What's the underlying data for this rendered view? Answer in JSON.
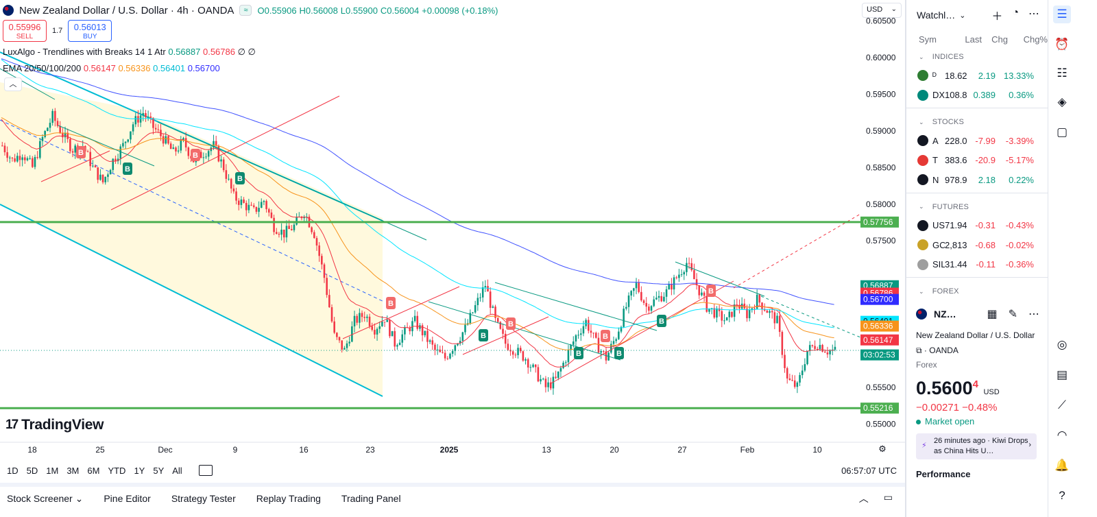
{
  "header": {
    "title": "New Zealand Dollar / U.S. Dollar · 4h · OANDA",
    "status_pill": "≈",
    "ohlc": {
      "o": "O0.55906",
      "h": "H0.56008",
      "l": "L0.55900",
      "c": "C0.56004",
      "chg": "+0.00098 (+0.18%)"
    },
    "sell_price": "0.55996",
    "sell_label": "SELL",
    "spread": "1.7",
    "buy_price": "0.56013",
    "buy_label": "BUY",
    "currency": "USD"
  },
  "indicators": {
    "luxalgo": {
      "label": "LuxAlgo - Trendlines with Breaks 14 1 Atr",
      "v1": "0.56887",
      "v2": "0.56786",
      "v3": "∅ ∅"
    },
    "ema": {
      "label": "EMA 20/50/100/200",
      "v20": "0.56147",
      "v50": "0.56336",
      "v100": "0.56401",
      "v200": "0.56700"
    }
  },
  "colors": {
    "up": "#089981",
    "down": "#f23645",
    "ema20": "#f23645",
    "ema50": "#f7931a",
    "ema100": "#00e5ff",
    "ema200": "#3f51ff",
    "level": "#4caf50",
    "channel": "#00bcd4"
  },
  "price_axis": {
    "ticks": [
      "0.60500",
      "0.60000",
      "0.59500",
      "0.59000",
      "0.58500",
      "0.58000",
      "0.57500",
      "0.55500",
      "0.55000"
    ],
    "tags": [
      {
        "text": "0.57756",
        "color": "#4caf50"
      },
      {
        "text": "0.56887",
        "color": "#089981"
      },
      {
        "text": "0.56786",
        "color": "#f23645"
      },
      {
        "text": "0.56700",
        "color": "#2f2bff"
      },
      {
        "text": "0.56401",
        "color": "#00e5ff"
      },
      {
        "text": "0.56336",
        "color": "#f7931a"
      },
      {
        "text": "0.56147",
        "color": "#f23645"
      },
      {
        "text": "03:02:53",
        "color": "#089981"
      },
      {
        "text": "0.55216",
        "color": "#4caf50"
      }
    ]
  },
  "time_axis": [
    "18",
    "25",
    "Dec",
    "9",
    "16",
    "23",
    "2025",
    "13",
    "20",
    "27",
    "Feb",
    "10"
  ],
  "range_buttons": [
    "1D",
    "5D",
    "1M",
    "3M",
    "6M",
    "YTD",
    "1Y",
    "5Y",
    "All"
  ],
  "clock": "06:57:07 UTC",
  "brand": "TradingView",
  "bottom_tabs": [
    "Stock Screener",
    "Pine Editor",
    "Strategy Tester",
    "Replay Trading",
    "Trading Panel"
  ],
  "watchlist": {
    "title": "Watchl…",
    "columns": [
      "Sym",
      "Last",
      "Chg",
      "Chg%"
    ],
    "sections": [
      {
        "name": "INDICES",
        "rows": [
          {
            "sym": "ᴰ",
            "icon_color": "#2e7d32",
            "last": "18.62",
            "chg": "2.19",
            "chgp": "13.33%",
            "dir": "pos"
          },
          {
            "sym": "DX",
            "icon_color": "#00897b",
            "last": "108.8",
            "chg": "0.389",
            "chgp": "0.36%",
            "dir": "pos"
          }
        ]
      },
      {
        "name": "STOCKS",
        "rows": [
          {
            "sym": "A",
            "icon_color": "#131722",
            "last": "228.0",
            "chg": "-7.99",
            "chgp": "-3.39%",
            "dir": "neg"
          },
          {
            "sym": "T",
            "icon_color": "#e53935",
            "last": "383.6",
            "chg": "-20.9",
            "chgp": "-5.17%",
            "dir": "neg"
          },
          {
            "sym": "N",
            "icon_color": "#131722",
            "last": "978.9",
            "chg": "2.18",
            "chgp": "0.22%",
            "dir": "pos"
          }
        ]
      },
      {
        "name": "FUTURES",
        "rows": [
          {
            "sym": "US",
            "icon_color": "#131722",
            "last": "71.94",
            "chg": "-0.31",
            "chgp": "-0.43%",
            "dir": "neg"
          },
          {
            "sym": "GC",
            "icon_color": "#c9a227",
            "last": "2,813",
            "chg": "-0.68",
            "chgp": "-0.02%",
            "dir": "neg"
          },
          {
            "sym": "SIL",
            "icon_color": "#9e9e9e",
            "last": "31.44",
            "chg": "-0.11",
            "chgp": "-0.36%",
            "dir": "neg"
          }
        ]
      },
      {
        "name": "FOREX",
        "rows": []
      }
    ]
  },
  "details": {
    "symbol": "NZ…",
    "name": "New Zealand Dollar / U.S. Dollar",
    "exchange": "OANDA",
    "type": "Forex",
    "price_main": "0.5600",
    "price_sup": "4",
    "price_ccy": "USD",
    "change": "−0.00271  −0.48%",
    "status": "Market open",
    "news": "26 minutes ago · Kiwi Drops as China Hits U…",
    "performance": "Performance"
  },
  "chart_data": {
    "type": "candlestick",
    "symbol": "NZDUSD",
    "timeframe": "4h",
    "ylim": [
      0.5475,
      0.6075
    ],
    "x_ticks": [
      "18",
      "25",
      "Dec",
      "9",
      "16",
      "23",
      "2025",
      "13",
      "20",
      "27",
      "Feb",
      "10"
    ],
    "close_path": [
      0.588,
      0.586,
      0.587,
      0.585,
      0.589,
      0.592,
      0.5895,
      0.5875,
      0.588,
      0.585,
      0.583,
      0.586,
      0.588,
      0.591,
      0.5925,
      0.5905,
      0.589,
      0.587,
      0.5885,
      0.586,
      0.587,
      0.588,
      0.585,
      0.581,
      0.58,
      0.579,
      0.5805,
      0.577,
      0.576,
      0.577,
      0.579,
      0.576,
      0.57,
      0.562,
      0.56,
      0.564,
      0.565,
      0.563,
      0.5645,
      0.561,
      0.5625,
      0.564,
      0.562,
      0.56,
      0.559,
      0.561,
      0.563,
      0.566,
      0.569,
      0.564,
      0.561,
      0.56,
      0.559,
      0.557,
      0.555,
      0.556,
      0.559,
      0.562,
      0.564,
      0.561,
      0.559,
      0.562,
      0.566,
      0.569,
      0.566,
      0.567,
      0.568,
      0.57,
      0.572,
      0.569,
      0.566,
      0.565,
      0.564,
      0.5665,
      0.565,
      0.567,
      0.5655,
      0.564,
      0.556,
      0.555,
      0.56,
      0.561,
      0.56
    ],
    "levels": [
      0.57756,
      0.55216
    ],
    "ema_last": {
      "20": 0.56147,
      "50": 0.56336,
      "100": 0.56401,
      "200": 0.567
    },
    "last_price": 0.56004
  }
}
